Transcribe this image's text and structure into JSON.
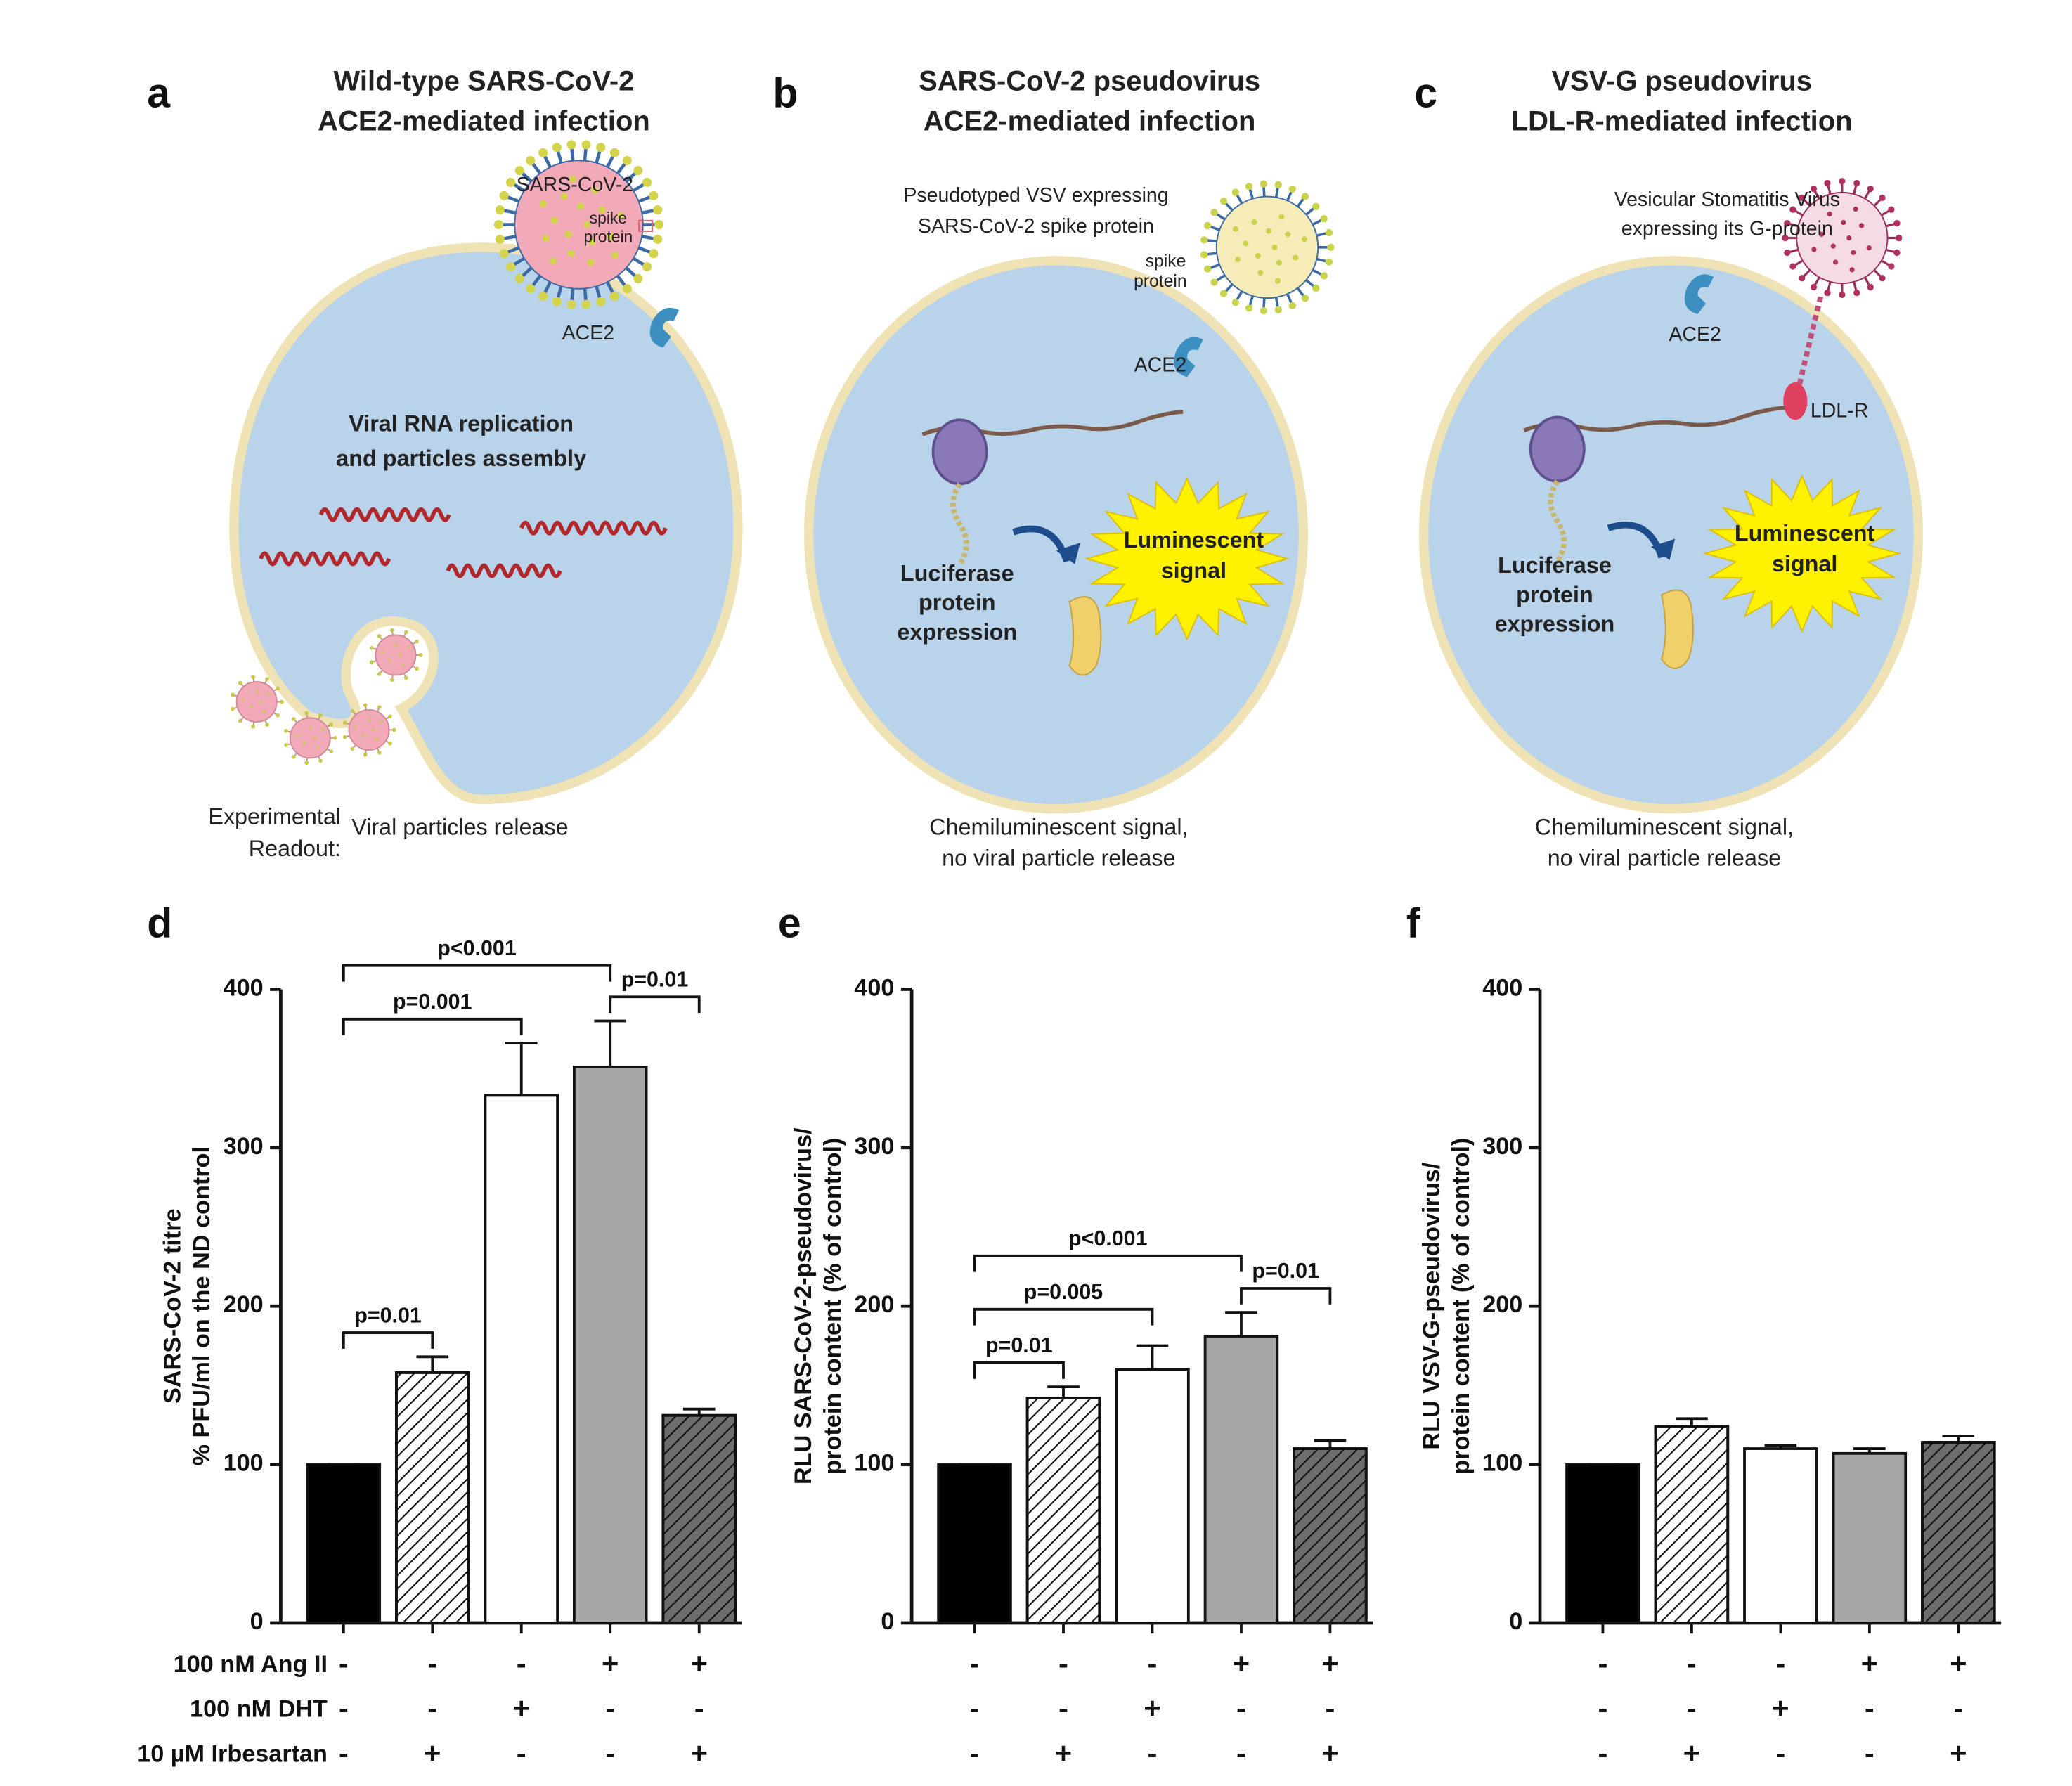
{
  "diagrams": [
    {
      "label": "a",
      "title": [
        "Wild-type SARS-CoV-2",
        "ACE2-mediated infection"
      ],
      "notes": [
        "SARS-CoV-2",
        "spike",
        "protein",
        "ACE2",
        "Viral RNA replication",
        "and particles assembly"
      ],
      "readout_heading": [
        "Experimental",
        "Readout:"
      ],
      "readout": [
        "Viral particles release"
      ]
    },
    {
      "label": "b",
      "title": [
        "SARS-CoV-2 pseudovirus",
        "ACE2-mediated infection"
      ],
      "notes": [
        "Pseudotyped VSV expressing",
        "SARS-CoV-2 spike protein",
        "spike",
        "protein",
        "ACE2",
        "Luciferase",
        "protein",
        "expression",
        "Luminescent",
        "signal"
      ],
      "readout": [
        "Chemiluminescent signal,",
        "no viral particle release"
      ]
    },
    {
      "label": "c",
      "title": [
        "VSV-G pseudovirus",
        "LDL-R-mediated infection"
      ],
      "notes": [
        "Vesicular Stomatitis Virus",
        "expressing its G-protein",
        "ACE2",
        "LDL-R",
        "Luciferase",
        "protein",
        "expression",
        "Luminescent",
        "signal"
      ],
      "readout": [
        "Chemiluminescent signal,",
        "no viral particle release"
      ]
    }
  ],
  "chart_data": [
    {
      "type": "bar",
      "panel_label": "d",
      "ylabel": [
        "SARS-CoV-2 titre",
        "% PFU/ml on the ND control"
      ],
      "values": [
        100,
        158,
        333,
        351,
        131
      ],
      "errors": [
        0,
        10,
        33,
        29,
        4
      ],
      "colors": [
        "#000000",
        "#ffffff",
        "#ffffff",
        "#a7a7a9",
        "#6d6d6d"
      ],
      "hatched": [
        false,
        true,
        false,
        false,
        true
      ],
      "ylim": [
        0,
        400
      ],
      "yticks": [
        0,
        100,
        200,
        300,
        400
      ],
      "treatment_names": [
        "100 nM Ang II",
        "100 nM DHT",
        "10 µM Irbesartan"
      ],
      "treatments": [
        [
          "-",
          "-",
          "-",
          "+",
          "+"
        ],
        [
          "-",
          "-",
          "+",
          "-",
          "-"
        ],
        [
          "-",
          "+",
          "-",
          "-",
          "+"
        ]
      ],
      "significance": [
        {
          "between": [
            0,
            1
          ],
          "label": "p=0.01"
        },
        {
          "between": [
            0,
            2
          ],
          "label": "p=0.001"
        },
        {
          "between": [
            0,
            3
          ],
          "label": "p<0.001"
        },
        {
          "between": [
            3,
            4
          ],
          "label": "p=0.01"
        }
      ]
    },
    {
      "type": "bar",
      "panel_label": "e",
      "ylabel": [
        "RLU SARS-CoV-2-pseudovirus/",
        "protein content (% of control)"
      ],
      "values": [
        100,
        142,
        160,
        181,
        110
      ],
      "errors": [
        0,
        7,
        15,
        15,
        5
      ],
      "colors": [
        "#000000",
        "#ffffff",
        "#ffffff",
        "#a7a7a9",
        "#6d6d6d"
      ],
      "hatched": [
        false,
        true,
        false,
        false,
        true
      ],
      "ylim": [
        0,
        400
      ],
      "yticks": [
        0,
        100,
        200,
        300,
        400
      ],
      "treatments": [
        [
          "-",
          "-",
          "-",
          "+",
          "+"
        ],
        [
          "-",
          "-",
          "+",
          "-",
          "-"
        ],
        [
          "-",
          "+",
          "-",
          "-",
          "+"
        ]
      ],
      "significance": [
        {
          "between": [
            0,
            1
          ],
          "label": "p=0.01"
        },
        {
          "between": [
            0,
            2
          ],
          "label": "p=0.005"
        },
        {
          "between": [
            0,
            3
          ],
          "label": "p<0.001"
        },
        {
          "between": [
            3,
            4
          ],
          "label": "p=0.01"
        }
      ]
    },
    {
      "type": "bar",
      "panel_label": "f",
      "ylabel": [
        "RLU VSV-G-pseudovirus/",
        "protein content (% of control)"
      ],
      "values": [
        100,
        124,
        110,
        107,
        114
      ],
      "errors": [
        0,
        5,
        2,
        3,
        4
      ],
      "colors": [
        "#000000",
        "#ffffff",
        "#ffffff",
        "#a7a7a9",
        "#6d6d6d"
      ],
      "hatched": [
        false,
        true,
        false,
        false,
        true
      ],
      "ylim": [
        0,
        400
      ],
      "yticks": [
        0,
        100,
        200,
        300,
        400
      ],
      "treatments": [
        [
          "-",
          "-",
          "-",
          "+",
          "+"
        ],
        [
          "-",
          "-",
          "+",
          "-",
          "-"
        ],
        [
          "-",
          "+",
          "-",
          "-",
          "+"
        ]
      ],
      "significance": []
    }
  ]
}
